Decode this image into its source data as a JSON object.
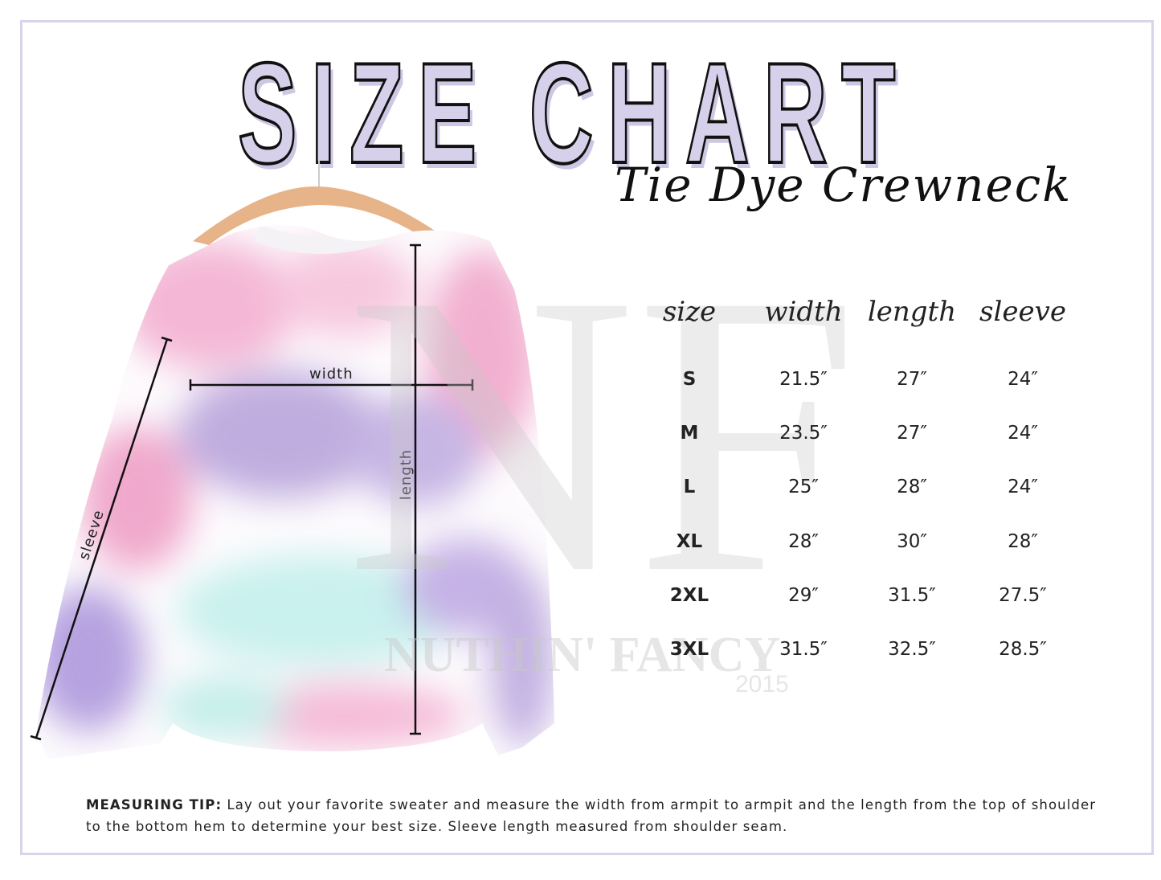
{
  "title": "SIZE CHART",
  "subtitle": "Tie Dye Crewneck",
  "colors": {
    "title_fill": "#d6d0ea",
    "frame": "#d9d4ec",
    "pink": "#f2b6d3",
    "lavender": "#b8a6e0",
    "mint": "#c8f0ec"
  },
  "measure_labels": {
    "width": "width",
    "length": "length",
    "sleeve": "sleeve"
  },
  "watermark": {
    "logo": "NF",
    "name": "NUTHIN' FANCY",
    "year": "2015"
  },
  "table": {
    "headers": [
      "size",
      "width",
      "length",
      "sleeve"
    ],
    "rows": [
      [
        "S",
        "21.5″",
        "27″",
        "24″"
      ],
      [
        "M",
        "23.5″",
        "27″",
        "24″"
      ],
      [
        "L",
        "25″",
        "28″",
        "24″"
      ],
      [
        "XL",
        "28″",
        "30″",
        "28″"
      ],
      [
        "2XL",
        "29″",
        "31.5″",
        "27.5″"
      ],
      [
        "3XL",
        "31.5″",
        "32.5″",
        "28.5″"
      ]
    ]
  },
  "tip": {
    "label": "MEASURING TIP:",
    "text": " Lay out your favorite sweater and measure the width from armpit to armpit and the length from the top of shoulder to the bottom hem to determine your best size. Sleeve length measured from shoulder seam."
  }
}
